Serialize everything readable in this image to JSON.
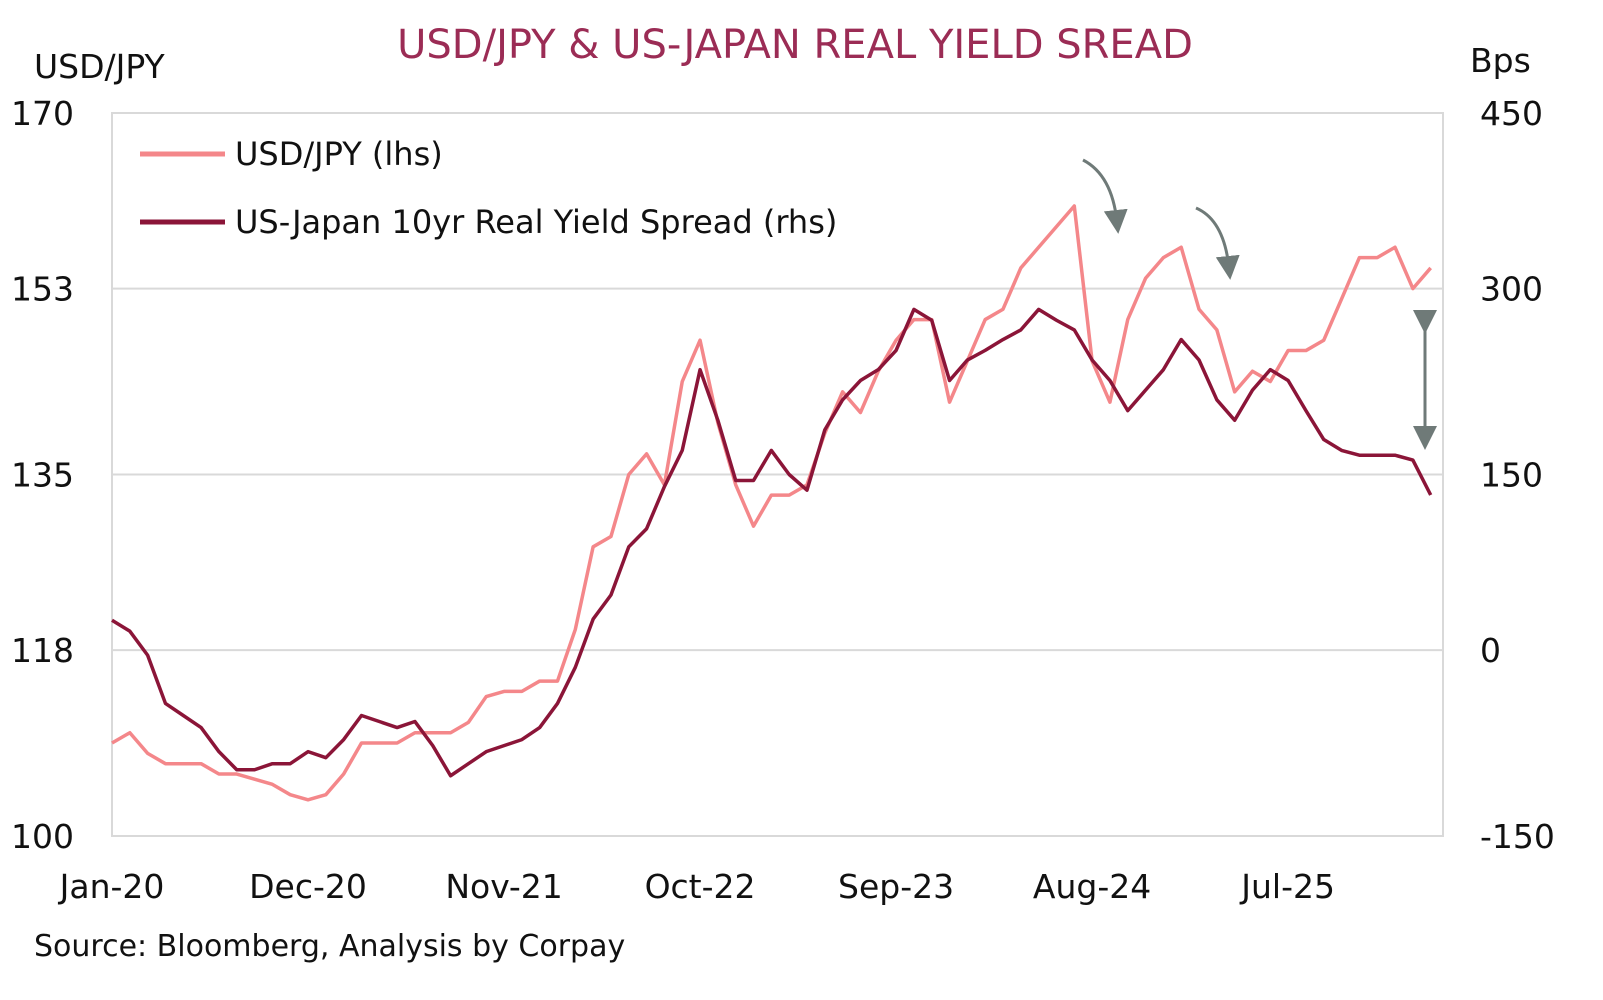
{
  "chart_data": {
    "type": "line",
    "title": "USD/JPY & US-JAPAN REAL YIELD SREAD",
    "ylabel_left": "USD/JPY",
    "ylabel_right": "Bps",
    "source": "Source: Bloomberg, Analysis by Corpay",
    "ylim_left": [
      100,
      170
    ],
    "ylim_right": [
      -150,
      450
    ],
    "yticks_left": [
      "100",
      "118",
      "135",
      "153",
      "170"
    ],
    "yticks_left_values": [
      100,
      118,
      135,
      153,
      170
    ],
    "yticks_right": [
      "-150",
      "0",
      "150",
      "300",
      "450"
    ],
    "xticks": [
      "Jan-20",
      "Dec-20",
      "Nov-21",
      "Oct-22",
      "Sep-23",
      "Aug-24",
      "Jul-25"
    ],
    "xticks_month_index": [
      0,
      11,
      22,
      33,
      44,
      55,
      66
    ],
    "x_start": "Jan-20",
    "x_unit": "month",
    "grid": "horizontal",
    "legend_position": "top-left",
    "colors": {
      "usdjpy": "#F4878A",
      "spread": "#8B1538",
      "annotation": "#6f7a78",
      "title": "#9B2C55"
    },
    "series": [
      {
        "name": "USD/JPY (lhs)",
        "axis": "left",
        "values": [
          109,
          110,
          108,
          107,
          107,
          107,
          106,
          106,
          105.5,
          105,
          104,
          103.5,
          104,
          106,
          109,
          109,
          109,
          110,
          110,
          110,
          111,
          113.5,
          114,
          114,
          115,
          115,
          120,
          128,
          129,
          135,
          137,
          134,
          144,
          148,
          140,
          134,
          130,
          133,
          133,
          134,
          139,
          143,
          141,
          145,
          148,
          150,
          150,
          142,
          146,
          150,
          151,
          155,
          157,
          159,
          161,
          146,
          142,
          150,
          154,
          156,
          157,
          151,
          149,
          143,
          145,
          144,
          147,
          147,
          148,
          152,
          156,
          156,
          157,
          153,
          155
        ]
      },
      {
        "name": "US-Japan 10yr Real Yield Spread (rhs)",
        "axis": "right",
        "values": [
          29,
          20,
          0,
          -40,
          -50,
          -60,
          -80,
          -95,
          -95,
          -90,
          -90,
          -80,
          -85,
          -70,
          -50,
          -55,
          -60,
          -55,
          -75,
          -100,
          -90,
          -80,
          -75,
          -70,
          -60,
          -40,
          -10,
          30,
          50,
          90,
          105,
          140,
          170,
          237,
          195,
          145,
          145,
          170,
          150,
          137,
          187,
          212,
          228,
          237,
          253,
          287,
          278,
          228,
          245,
          253,
          262,
          270,
          287,
          278,
          270,
          245,
          228,
          203,
          220,
          237,
          262,
          245,
          212,
          195,
          220,
          237,
          228,
          203,
          179,
          170,
          166,
          166,
          166,
          162,
          133
        ]
      }
    ]
  }
}
